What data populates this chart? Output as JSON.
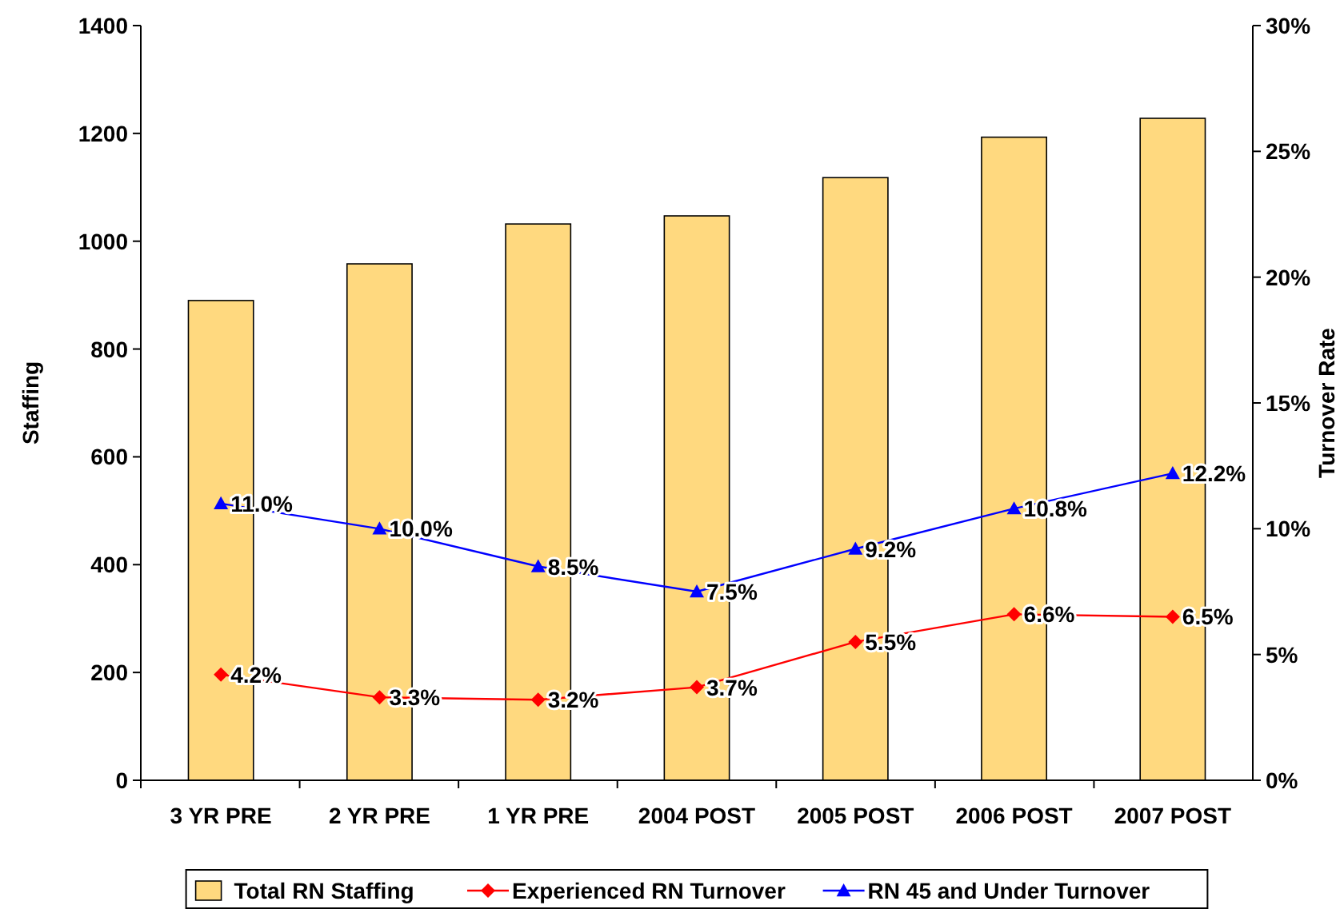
{
  "chart_data": {
    "type": "bar",
    "ylabel": "Staffing",
    "y2label": "Turnover Rate",
    "categories": [
      "3 YR PRE",
      "2 YR PRE",
      "1 YR PRE",
      "2004 POST",
      "2005 POST",
      "2006 POST",
      "2007 POST"
    ],
    "series": [
      {
        "name": "Total RN Staffing",
        "color": "#ffd97f",
        "values": [
          890,
          958,
          1032,
          1047,
          1118,
          1193,
          1228
        ]
      },
      {
        "name": "Experienced RN Turnover",
        "type": "line",
        "axis": "y2",
        "color": "#ff0000",
        "marker": "diamond",
        "values": [
          4.2,
          3.3,
          3.2,
          3.7,
          5.5,
          6.6,
          6.5
        ],
        "value_labels": [
          "4.2%",
          "3.3%",
          "3.2%",
          "3.7%",
          "5.5%",
          "6.6%",
          "6.5%"
        ]
      },
      {
        "name": "RN 45 and Under Turnover",
        "type": "line",
        "axis": "y2",
        "color": "#0000ff",
        "marker": "triangle",
        "values": [
          11.0,
          10.0,
          8.5,
          7.5,
          9.2,
          10.8,
          12.2
        ],
        "value_labels": [
          "11.0%",
          "10.0%",
          "8.5%",
          "7.5%",
          "9.2%",
          "10.8%",
          "12.2%"
        ]
      }
    ],
    "ylim": [
      0,
      1400
    ],
    "yticks": [
      0,
      200,
      400,
      600,
      800,
      1000,
      1200,
      1400
    ],
    "y2lim": [
      0,
      30
    ],
    "y2ticks": [
      {
        "value": 0,
        "label": "0%"
      },
      {
        "value": 5,
        "label": "5%"
      },
      {
        "value": 10,
        "label": "10%"
      },
      {
        "value": 15,
        "label": "15%"
      },
      {
        "value": 20,
        "label": "20%"
      },
      {
        "value": 25,
        "label": "25%"
      },
      {
        "value": 30,
        "label": "30%"
      }
    ],
    "grid": false,
    "legend": "bottom"
  }
}
